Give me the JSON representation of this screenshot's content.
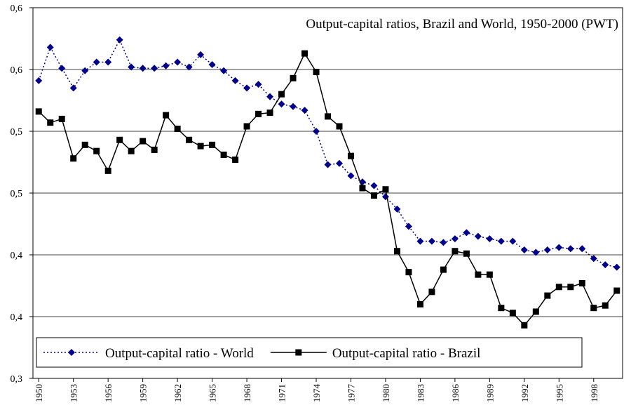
{
  "chart_data": {
    "type": "line",
    "title": "Output-capital ratios, Brazil and World, 1950-2000 (PWT)",
    "x": [
      1950,
      1951,
      1952,
      1953,
      1954,
      1955,
      1956,
      1957,
      1958,
      1959,
      1960,
      1961,
      1962,
      1963,
      1964,
      1965,
      1966,
      1967,
      1968,
      1969,
      1970,
      1971,
      1972,
      1973,
      1974,
      1975,
      1976,
      1977,
      1978,
      1979,
      1980,
      1981,
      1982,
      1983,
      1984,
      1985,
      1986,
      1987,
      1988,
      1989,
      1990,
      1991,
      1992,
      1993,
      1994,
      1995,
      1996,
      1997,
      1998,
      1999,
      2000
    ],
    "xlim": [
      1949.5,
      2000.5
    ],
    "xticks": [
      1950,
      1953,
      1956,
      1959,
      1962,
      1965,
      1968,
      1971,
      1974,
      1977,
      1980,
      1983,
      1986,
      1989,
      1992,
      1995,
      1998
    ],
    "ylim": [
      0.3,
      0.6
    ],
    "yticks": [
      {
        "value": 0.3,
        "label": "0,3"
      },
      {
        "value": 0.35,
        "label": "0,4"
      },
      {
        "value": 0.4,
        "label": "0,4"
      },
      {
        "value": 0.45,
        "label": "0,5"
      },
      {
        "value": 0.5,
        "label": "0,5"
      },
      {
        "value": 0.55,
        "label": "0,6"
      },
      {
        "value": 0.6,
        "label": "0,6"
      }
    ],
    "grid": true,
    "legend": "lower left",
    "series": [
      {
        "name": "Output-capital ratio - World",
        "color": "#00008b",
        "marker": "diamond",
        "linestyle": "dotted",
        "values": [
          0.541,
          0.568,
          0.551,
          0.535,
          0.549,
          0.556,
          0.556,
          0.574,
          0.552,
          0.551,
          0.551,
          0.553,
          0.556,
          0.552,
          0.562,
          0.554,
          0.549,
          0.541,
          0.535,
          0.538,
          0.528,
          0.522,
          0.52,
          0.517,
          0.5,
          0.473,
          0.474,
          0.464,
          0.459,
          0.456,
          0.447,
          0.437,
          0.423,
          0.411,
          0.411,
          0.41,
          0.413,
          0.418,
          0.415,
          0.413,
          0.411,
          0.411,
          0.404,
          0.402,
          0.404,
          0.406,
          0.405,
          0.405,
          0.397,
          0.392,
          0.39
        ]
      },
      {
        "name": "Output-capital ratio - Brazil",
        "color": "#000000",
        "marker": "square",
        "linestyle": "solid",
        "values": [
          0.516,
          0.507,
          0.51,
          0.478,
          0.489,
          0.484,
          0.468,
          0.493,
          0.484,
          0.492,
          0.485,
          0.513,
          0.502,
          0.493,
          0.488,
          0.489,
          0.481,
          0.477,
          0.504,
          0.514,
          0.515,
          0.53,
          0.543,
          0.563,
          0.548,
          0.512,
          0.504,
          0.48,
          0.454,
          0.448,
          0.453,
          0.403,
          0.386,
          0.36,
          0.37,
          0.388,
          0.403,
          0.401,
          0.384,
          0.384,
          0.357,
          0.353,
          0.343,
          0.354,
          0.367,
          0.374,
          0.374,
          0.377,
          0.357,
          0.359,
          0.371
        ]
      }
    ]
  }
}
